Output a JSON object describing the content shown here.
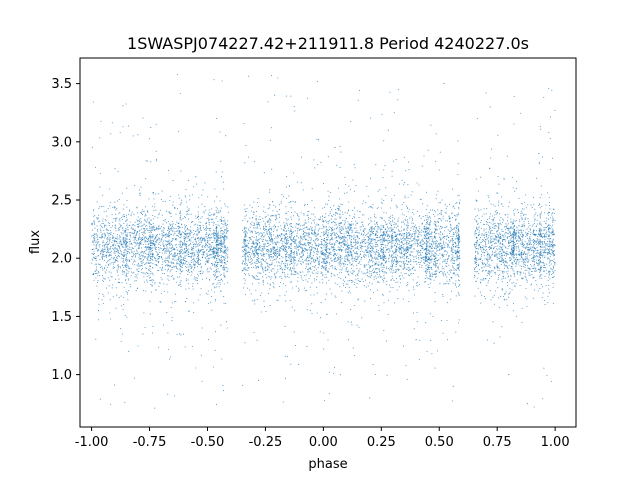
{
  "chart_data": {
    "type": "scatter",
    "title": "1SWASPJ074227.42+211911.8 Period 4240227.0s",
    "xlabel": "phase",
    "ylabel": "flux",
    "xlim": [
      -1.05,
      1.09
    ],
    "ylim": [
      0.55,
      3.72
    ],
    "xticks": [
      "-1.00",
      "-0.75",
      "-0.50",
      "-0.25",
      "0.00",
      "0.25",
      "0.50",
      "0.75",
      "1.00"
    ],
    "yticks": [
      "1.0",
      "1.5",
      "2.0",
      "2.5",
      "3.0",
      "3.5"
    ],
    "grid": false,
    "legend": "none",
    "marker_color": "#1f77b4",
    "series": [
      {
        "points_summary": {
          "phase_range": [
            -1.0,
            1.0
          ],
          "flux_center": 2.1,
          "flux_core_spread": [
            1.8,
            2.4
          ],
          "flux_outlier_range": [
            0.7,
            3.58
          ],
          "data_gaps_phase": [
            [
              -0.41,
              -0.35
            ],
            [
              0.59,
              0.65
            ]
          ]
        },
        "points": [
          [
            -0.98,
            2.11
          ],
          [
            -0.95,
            2.05
          ],
          [
            -0.92,
            2.18
          ],
          [
            -0.88,
            2.09
          ],
          [
            -0.85,
            2.14
          ],
          [
            -0.81,
            2.02
          ],
          [
            -0.78,
            2.16
          ],
          [
            -0.74,
            2.08
          ],
          [
            -0.71,
            2.12
          ],
          [
            -0.67,
            2.19
          ],
          [
            -0.63,
            2.07
          ],
          [
            -0.6,
            2.13
          ],
          [
            -0.56,
            2.1
          ],
          [
            -0.52,
            2.17
          ],
          [
            -0.48,
            2.06
          ],
          [
            -0.44,
            2.15
          ],
          [
            -0.33,
            2.04
          ],
          [
            -0.3,
            2.12
          ],
          [
            -0.26,
            2.08
          ],
          [
            -0.22,
            2.14
          ],
          [
            -0.18,
            2.1
          ],
          [
            -0.14,
            2.06
          ],
          [
            -0.1,
            2.13
          ],
          [
            -0.06,
            2.09
          ],
          [
            -0.02,
            2.11
          ],
          [
            0.02,
            2.05
          ],
          [
            0.06,
            2.15
          ],
          [
            0.1,
            2.08
          ],
          [
            0.14,
            2.12
          ],
          [
            0.18,
            2.1
          ],
          [
            0.22,
            2.16
          ],
          [
            0.26,
            2.07
          ],
          [
            0.3,
            2.13
          ],
          [
            0.34,
            2.09
          ],
          [
            0.38,
            2.11
          ],
          [
            0.42,
            2.14
          ],
          [
            0.46,
            2.06
          ],
          [
            0.5,
            2.12
          ],
          [
            0.54,
            2.18
          ],
          [
            0.57,
            2.1
          ],
          [
            0.67,
            2.08
          ],
          [
            0.7,
            2.13
          ],
          [
            0.74,
            2.05
          ],
          [
            0.78,
            2.16
          ],
          [
            0.82,
            2.09
          ],
          [
            0.86,
            2.12
          ],
          [
            0.9,
            2.07
          ],
          [
            0.94,
            2.14
          ],
          [
            0.97,
            2.1
          ],
          [
            1.0,
            2.11
          ],
          [
            -0.97,
            1.55
          ],
          [
            -0.72,
            2.85
          ],
          [
            -0.62,
            1.35
          ],
          [
            -0.46,
            3.2
          ],
          [
            -0.28,
            0.95
          ],
          [
            -0.21,
            3.4
          ],
          [
            -0.12,
            1.25
          ],
          [
            0.05,
            2.95
          ],
          [
            0.2,
            0.8
          ],
          [
            0.28,
            3.1
          ],
          [
            0.4,
            1.3
          ],
          [
            0.52,
            3.5
          ],
          [
            0.56,
            0.9
          ],
          [
            0.72,
            3.3
          ],
          [
            0.8,
            1.0
          ],
          [
            0.88,
            0.75
          ],
          [
            0.93,
            2.9
          ],
          [
            -0.84,
            1.2
          ],
          [
            -0.55,
            2.7
          ],
          [
            0.12,
            1.45
          ]
        ]
      }
    ]
  }
}
